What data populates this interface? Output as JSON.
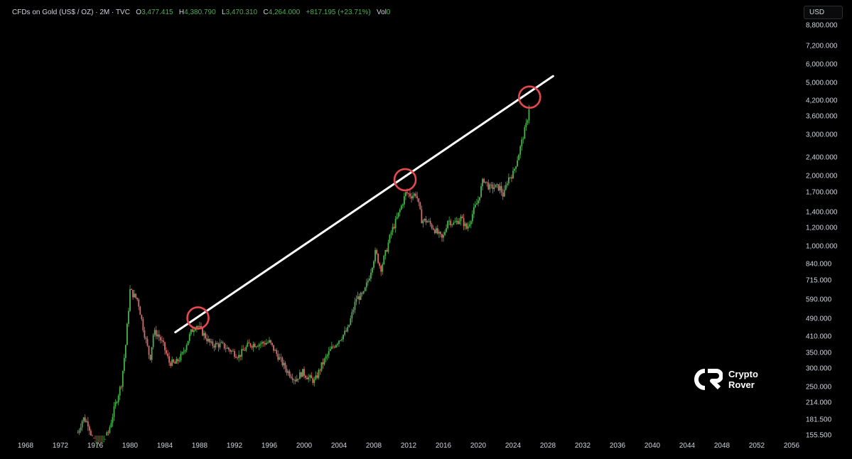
{
  "legend": {
    "symbol": "CFDs on Gold (US$ / OZ) · 2M · TVC",
    "o_label": "O",
    "o_value": "3,477.415",
    "h_label": "H",
    "h_value": "4,380.790",
    "l_label": "L",
    "l_value": "3,470.310",
    "c_label": "C",
    "c_value": "4,264.000",
    "change": "+817.195 (+23.71%)",
    "vol_label": "Vol",
    "vol_value": "0"
  },
  "currency_button": "USD",
  "watermark": {
    "line1": "Crypto",
    "line2": "Rover"
  },
  "colors": {
    "up": "#4caf50",
    "down": "#e06666",
    "trendline": "#ffffff",
    "circle": "#e5484d"
  },
  "chart_data": {
    "type": "candlestick",
    "title": "CFDs on Gold (US$ / OZ)",
    "interval": "2M",
    "y_scale": "log",
    "ylim": [
      155.5,
      8800
    ],
    "xlim": [
      1968,
      2056
    ],
    "y_ticks": [
      "8,800.000",
      "7,200.000",
      "6,000.000",
      "5,000.000",
      "4,200.000",
      "3,600.000",
      "3,000.000",
      "2,400.000",
      "2,000.000",
      "1,700.000",
      "1,400.000",
      "1,200.000",
      "1,000.000",
      "840.000",
      "715.000",
      "590.000",
      "490.000",
      "410.000",
      "350.000",
      "300.000",
      "250.000",
      "214.000",
      "181.500",
      "155.500"
    ],
    "x_ticks": [
      "1968",
      "1972",
      "1976",
      "1980",
      "1984",
      "1988",
      "1992",
      "1996",
      "2000",
      "2004",
      "2008",
      "2012",
      "2016",
      "2020",
      "2024",
      "2028",
      "2032",
      "2036",
      "2040",
      "2044",
      "2048",
      "2052",
      "2056"
    ],
    "price_path": [
      [
        1974.0,
        160
      ],
      [
        1974.6,
        185
      ],
      [
        1975.2,
        175
      ],
      [
        1976.0,
        135
      ],
      [
        1976.7,
        140
      ],
      [
        1977.5,
        160
      ],
      [
        1978.3,
        210
      ],
      [
        1979.0,
        260
      ],
      [
        1979.5,
        380
      ],
      [
        1980.0,
        650
      ],
      [
        1980.4,
        620
      ],
      [
        1980.9,
        590
      ],
      [
        1981.5,
        450
      ],
      [
        1982.3,
        330
      ],
      [
        1982.7,
        430
      ],
      [
        1983.2,
        420
      ],
      [
        1983.8,
        380
      ],
      [
        1984.5,
        320
      ],
      [
        1985.2,
        315
      ],
      [
        1986.0,
        345
      ],
      [
        1987.0,
        430
      ],
      [
        1987.6,
        465
      ],
      [
        1988.5,
        420
      ],
      [
        1989.3,
        380
      ],
      [
        1990.5,
        380
      ],
      [
        1991.5,
        360
      ],
      [
        1992.5,
        340
      ],
      [
        1993.6,
        380
      ],
      [
        1995.0,
        385
      ],
      [
        1996.0,
        390
      ],
      [
        1997.2,
        330
      ],
      [
        1998.0,
        295
      ],
      [
        1999.0,
        270
      ],
      [
        1999.8,
        290
      ],
      [
        2000.5,
        275
      ],
      [
        2001.2,
        265
      ],
      [
        2002.0,
        310
      ],
      [
        2003.0,
        360
      ],
      [
        2004.0,
        400
      ],
      [
        2005.0,
        440
      ],
      [
        2006.0,
        600
      ],
      [
        2006.8,
        620
      ],
      [
        2007.5,
        750
      ],
      [
        2008.2,
        950
      ],
      [
        2008.8,
        800
      ],
      [
        2009.5,
        980
      ],
      [
        2010.0,
        1150
      ],
      [
        2010.6,
        1300
      ],
      [
        2011.2,
        1500
      ],
      [
        2011.7,
        1700
      ],
      [
        2012.3,
        1650
      ],
      [
        2012.9,
        1680
      ],
      [
        2013.5,
        1300
      ],
      [
        2014.2,
        1280
      ],
      [
        2015.0,
        1180
      ],
      [
        2015.9,
        1070
      ],
      [
        2016.5,
        1300
      ],
      [
        2017.2,
        1250
      ],
      [
        2018.0,
        1320
      ],
      [
        2018.7,
        1190
      ],
      [
        2019.4,
        1400
      ],
      [
        2020.0,
        1580
      ],
      [
        2020.6,
        1950
      ],
      [
        2021.3,
        1780
      ],
      [
        2021.9,
        1800
      ],
      [
        2022.5,
        1780
      ],
      [
        2022.9,
        1640
      ],
      [
        2023.4,
        1950
      ],
      [
        2024.0,
        2050
      ],
      [
        2024.6,
        2450
      ],
      [
        2025.2,
        3000
      ],
      [
        2025.6,
        3400
      ],
      [
        2025.9,
        4100
      ]
    ],
    "annotations": {
      "trendline": {
        "from": [
          1985.2,
          430
        ],
        "to": [
          2028.6,
          5350
        ]
      },
      "circles": [
        {
          "year": 1987.8,
          "price": 495
        },
        {
          "year": 2011.6,
          "price": 1930
        },
        {
          "year": 2025.9,
          "price": 4350
        }
      ]
    }
  }
}
